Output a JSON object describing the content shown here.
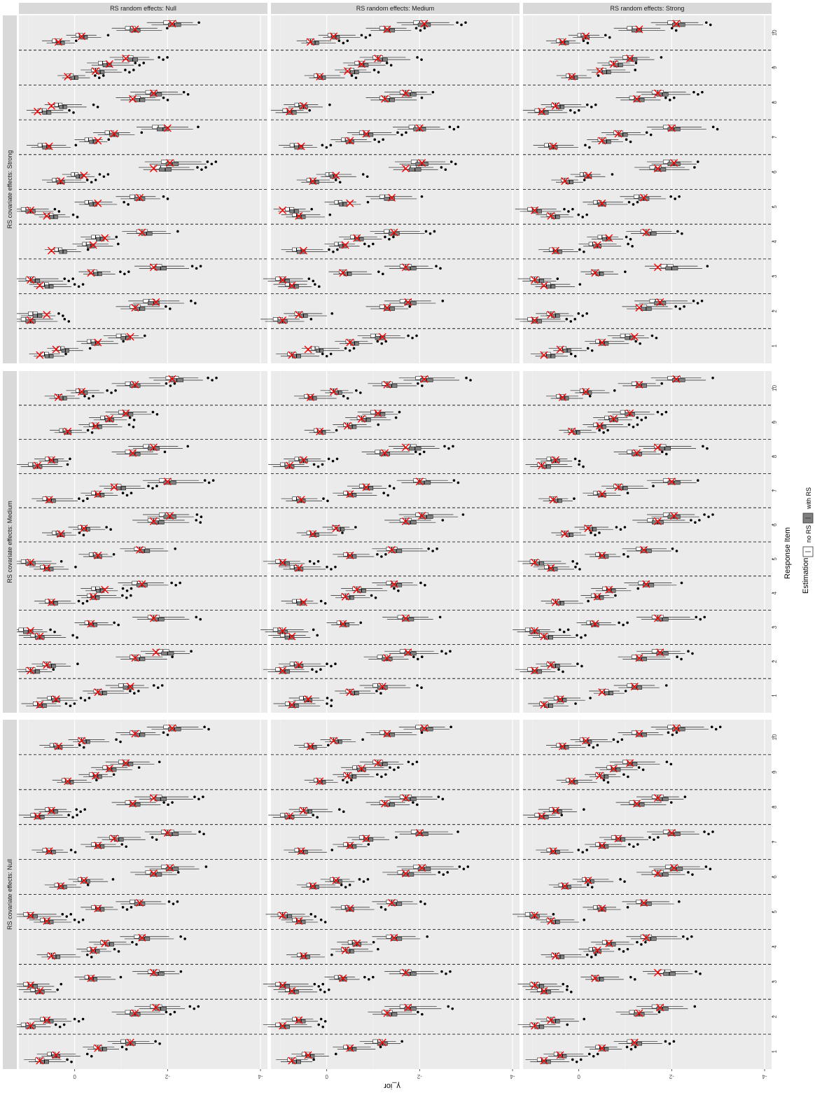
{
  "chart_data": {
    "type": "boxplot",
    "title": "",
    "xlabel": "Response Item",
    "ylabel": "γ_ior",
    "facet_columns": [
      "RS random effects: Null",
      "RS random effects: Medium",
      "RS random effects: Strong"
    ],
    "facet_rows": [
      "RS covariate effects: Strong",
      "RS covariate effects: Medium",
      "RS covariate effects: Null"
    ],
    "items": [
      "1",
      "2",
      "3",
      "4",
      "5",
      "6",
      "7",
      "8",
      "9",
      "10"
    ],
    "y_ticks": [
      0,
      -2,
      -4
    ],
    "y_tick_labels": [
      "0",
      "-2",
      "-4"
    ],
    "y_range": [
      1.2,
      -4.15
    ],
    "legend": {
      "title": "Estimation",
      "placement": "right",
      "entries": [
        {
          "label": "no RS",
          "fill": "#ffffff"
        },
        {
          "label": "with RS",
          "fill": "#7f7f7f"
        }
      ]
    },
    "true_value_marker": {
      "shape": "x",
      "color": "#ff0000"
    },
    "true_values": [
      [
        0.75,
        0.4,
        -0.5,
        -1.2
      ],
      [
        0.95,
        0.6,
        -1.3,
        -1.75
      ],
      [
        0.75,
        0.95,
        -0.35,
        -1.7
      ],
      [
        0.5,
        -0.4,
        -0.65,
        -1.45
      ],
      [
        0.6,
        0.95,
        -0.5,
        -1.4
      ],
      [
        0.3,
        -0.2,
        -1.7,
        -2.05
      ],
      [
        0.55,
        -0.5,
        -0.85,
        -2.0
      ],
      [
        0.8,
        0.5,
        -1.25,
        -1.7
      ],
      [
        0.15,
        -0.45,
        -0.75,
        -1.1
      ],
      [
        0.35,
        -0.15,
        -1.3,
        -2.1
      ]
    ],
    "panels": [
      [
        {
          "covariate": "Strong",
          "random": "Null",
          "medians": [
            [
              0.6,
              0.25,
              -0.4,
              -1.05
            ],
            [
              1.0,
              0.85,
              -1.35,
              -1.65
            ],
            [
              0.6,
              0.9,
              -0.45,
              -1.8
            ],
            [
              0.3,
              -0.3,
              -0.5,
              -1.5
            ],
            [
              0.5,
              1.0,
              -0.35,
              -1.35
            ],
            [
              0.35,
              -0.05,
              -1.9,
              -2.05
            ],
            [
              0.65,
              -0.35,
              -0.8,
              -1.85
            ],
            [
              0.65,
              0.3,
              -1.35,
              -1.7
            ],
            [
              0.05,
              -0.5,
              -0.65,
              -1.2
            ],
            [
              0.35,
              -0.15,
              -1.25,
              -2.1
            ]
          ]
        },
        {
          "covariate": "Strong",
          "random": "Medium",
          "medians": [
            [
              0.7,
              0.2,
              -0.55,
              -1.1
            ],
            [
              1.0,
              0.55,
              -1.3,
              -1.75
            ],
            [
              0.75,
              0.95,
              -0.4,
              -1.75
            ],
            [
              0.6,
              -0.3,
              -0.65,
              -1.4
            ],
            [
              0.6,
              0.75,
              -0.3,
              -1.3
            ],
            [
              0.3,
              -0.1,
              -1.85,
              -2.0
            ],
            [
              0.65,
              -0.45,
              -0.85,
              -1.95
            ],
            [
              0.8,
              0.55,
              -1.3,
              -1.75
            ],
            [
              0.15,
              -0.55,
              -0.75,
              -1.15
            ],
            [
              0.3,
              -0.15,
              -1.3,
              -2.05
            ]
          ]
        },
        {
          "covariate": "Strong",
          "random": "Strong",
          "medians": [
            [
              0.65,
              0.3,
              -0.5,
              -1.05
            ],
            [
              0.95,
              0.55,
              -1.4,
              -1.7
            ],
            [
              0.65,
              0.9,
              -0.4,
              -1.95
            ],
            [
              0.5,
              -0.35,
              -0.55,
              -1.5
            ],
            [
              0.55,
              0.95,
              -0.45,
              -1.35
            ],
            [
              0.25,
              -0.15,
              -1.7,
              -2.0
            ],
            [
              0.6,
              -0.55,
              -0.9,
              -2.0
            ],
            [
              0.8,
              0.45,
              -1.25,
              -1.75
            ],
            [
              0.15,
              -0.55,
              -0.8,
              -1.1
            ],
            [
              0.35,
              -0.1,
              -1.2,
              -2.1
            ]
          ]
        }
      ],
      [
        {
          "covariate": "Medium",
          "random": "Null",
          "medians": [
            [
              0.75,
              0.45,
              -0.55,
              -1.1
            ],
            [
              0.9,
              0.55,
              -1.35,
              -1.95
            ],
            [
              0.8,
              1.05,
              -0.35,
              -1.75
            ],
            [
              0.5,
              -0.4,
              -0.5,
              -1.4
            ],
            [
              0.6,
              1.0,
              -0.45,
              -1.45
            ],
            [
              0.35,
              -0.2,
              -1.75,
              -2.0
            ],
            [
              0.55,
              -0.5,
              -0.95,
              -2.0
            ],
            [
              0.85,
              0.5,
              -1.25,
              -1.65
            ],
            [
              0.2,
              -0.45,
              -0.7,
              -1.1
            ],
            [
              0.3,
              -0.15,
              -1.25,
              -2.15
            ]
          ]
        },
        {
          "covariate": "Medium",
          "random": "Medium",
          "medians": [
            [
              0.75,
              0.45,
              -0.55,
              -1.15
            ],
            [
              0.95,
              0.65,
              -1.25,
              -1.75
            ],
            [
              0.85,
              1.0,
              -0.35,
              -1.7
            ],
            [
              0.6,
              -0.45,
              -0.7,
              -1.45
            ],
            [
              0.65,
              0.95,
              -0.5,
              -1.45
            ],
            [
              0.3,
              -0.25,
              -1.75,
              -2.1
            ],
            [
              0.6,
              -0.5,
              -0.85,
              -2.05
            ],
            [
              0.85,
              0.55,
              -1.2,
              -1.85
            ],
            [
              0.15,
              -0.5,
              -0.8,
              -1.1
            ],
            [
              0.35,
              -0.2,
              -1.35,
              -2.1
            ]
          ]
        },
        {
          "covariate": "Medium",
          "random": "Strong",
          "medians": [
            [
              0.7,
              0.4,
              -0.6,
              -1.2
            ],
            [
              0.95,
              0.55,
              -1.3,
              -1.75
            ],
            [
              0.7,
              1.0,
              -0.3,
              -1.75
            ],
            [
              0.45,
              -0.4,
              -0.65,
              -1.45
            ],
            [
              0.6,
              0.9,
              -0.5,
              -1.4
            ],
            [
              0.25,
              -0.25,
              -1.65,
              -2.0
            ],
            [
              0.5,
              -0.45,
              -0.9,
              -2.0
            ],
            [
              0.75,
              0.55,
              -1.2,
              -1.8
            ],
            [
              0.1,
              -0.45,
              -0.7,
              -1.05
            ],
            [
              0.35,
              -0.15,
              -1.3,
              -2.1
            ]
          ]
        }
      ],
      [
        {
          "covariate": "Null",
          "random": "Null",
          "medians": [
            [
              0.7,
              0.45,
              -0.55,
              -1.15
            ],
            [
              1.0,
              0.6,
              -1.25,
              -1.8
            ],
            [
              0.8,
              0.95,
              -0.35,
              -1.75
            ],
            [
              0.45,
              -0.4,
              -0.7,
              -1.45
            ],
            [
              0.6,
              0.95,
              -0.5,
              -1.35
            ],
            [
              0.3,
              -0.2,
              -1.7,
              -2.05
            ],
            [
              0.55,
              -0.5,
              -0.9,
              -2.05
            ],
            [
              0.8,
              0.5,
              -1.25,
              -1.8
            ],
            [
              0.15,
              -0.45,
              -0.75,
              -1.1
            ],
            [
              0.4,
              -0.2,
              -1.35,
              -2.1
            ]
          ]
        },
        {
          "covariate": "Null",
          "random": "Medium",
          "medians": [
            [
              0.7,
              0.4,
              -0.5,
              -1.15
            ],
            [
              0.95,
              0.6,
              -1.35,
              -1.75
            ],
            [
              0.75,
              0.95,
              -0.3,
              -1.75
            ],
            [
              0.5,
              -0.45,
              -0.6,
              -1.45
            ],
            [
              0.6,
              0.9,
              -0.45,
              -1.45
            ],
            [
              0.3,
              -0.2,
              -1.7,
              -2.05
            ],
            [
              0.55,
              -0.5,
              -0.85,
              -2.0
            ],
            [
              0.85,
              0.45,
              -1.3,
              -1.75
            ],
            [
              0.15,
              -0.5,
              -0.7,
              -1.15
            ],
            [
              0.35,
              -0.2,
              -1.3,
              -2.1
            ]
          ]
        },
        {
          "covariate": "Null",
          "random": "Strong",
          "medians": [
            [
              0.75,
              0.4,
              -0.5,
              -1.2
            ],
            [
              0.9,
              0.55,
              -1.25,
              -1.75
            ],
            [
              0.75,
              0.9,
              -0.4,
              -1.9
            ],
            [
              0.45,
              -0.35,
              -0.65,
              -1.5
            ],
            [
              0.55,
              1.0,
              -0.45,
              -1.4
            ],
            [
              0.3,
              -0.2,
              -1.75,
              -2.05
            ],
            [
              0.55,
              -0.5,
              -0.85,
              -2.0
            ],
            [
              0.8,
              0.5,
              -1.25,
              -1.75
            ],
            [
              0.15,
              -0.5,
              -0.75,
              -1.1
            ],
            [
              0.35,
              -0.15,
              -1.3,
              -2.1
            ]
          ]
        }
      ]
    ]
  }
}
